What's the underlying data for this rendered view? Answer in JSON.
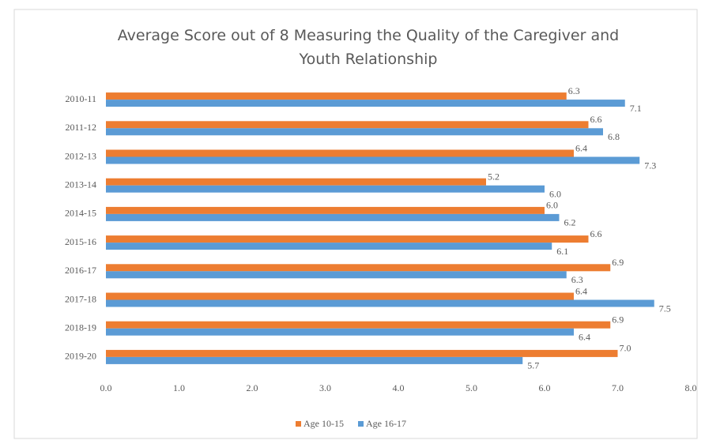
{
  "chart_data": {
    "type": "hbar",
    "title": "Average Score out of 8 Measuring the Quality of the Caregiver and Youth Relationship",
    "categories": [
      "2010-11",
      "2011-12",
      "2012-13",
      "2013-14",
      "2014-15",
      "2015-16",
      "2016-17",
      "2017-18",
      "2018-19",
      "2019-20"
    ],
    "series": [
      {
        "name": "Age 10-15",
        "color": "#ed7d31",
        "values": [
          6.3,
          6.6,
          6.4,
          5.2,
          6.0,
          6.6,
          6.9,
          6.4,
          6.9,
          7.0
        ],
        "value_labels": [
          "6.3",
          "6.6",
          "6.4",
          "5.2",
          "6.0",
          "6.6",
          "6.9",
          "6.4",
          "6.9",
          "7.0"
        ]
      },
      {
        "name": "Age 16-17",
        "color": "#5b9bd5",
        "values": [
          7.1,
          6.8,
          7.3,
          6.0,
          6.2,
          6.1,
          6.3,
          7.5,
          6.4,
          5.7
        ],
        "value_labels": [
          "7.1",
          "6.8",
          "7.3",
          "6.0",
          "6.2",
          "6.1",
          "6.3",
          "7.5",
          "6.4",
          "5.7"
        ]
      }
    ],
    "xlim": [
      0,
      8
    ],
    "xticks": [
      {
        "value": 0,
        "label": "0.0"
      },
      {
        "value": 1,
        "label": "1.0"
      },
      {
        "value": 2,
        "label": "2.0"
      },
      {
        "value": 3,
        "label": "3.0"
      },
      {
        "value": 4,
        "label": "4.0"
      },
      {
        "value": 5,
        "label": "5.0"
      },
      {
        "value": 6,
        "label": "6.0"
      },
      {
        "value": 7,
        "label": "7.0"
      },
      {
        "value": 8,
        "label": "8.0"
      }
    ],
    "legend": "bottom"
  }
}
